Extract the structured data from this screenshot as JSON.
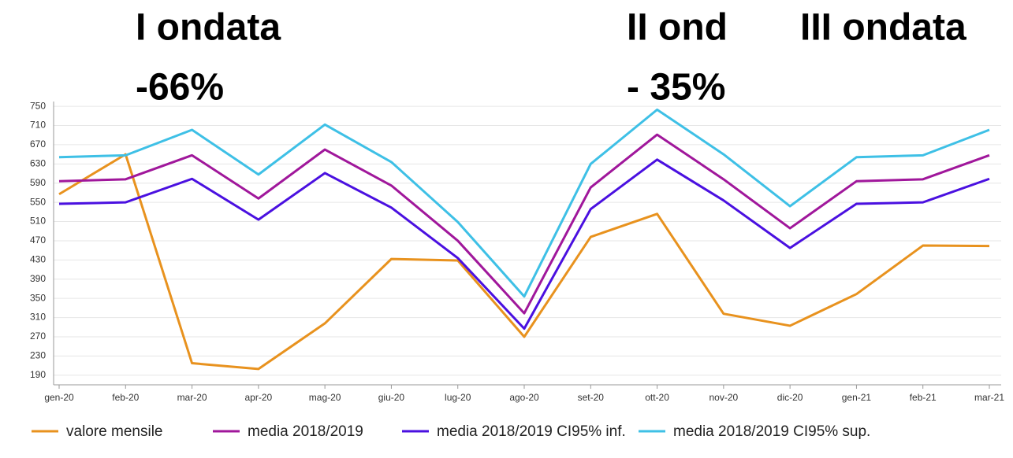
{
  "chart_data": {
    "type": "line",
    "annotations": [
      "I ondata",
      "-66%",
      "II ond",
      "- 35%",
      "III ondata"
    ],
    "categories": [
      "gen-20",
      "feb-20",
      "mar-20",
      "apr-20",
      "mag-20",
      "giu-20",
      "lug-20",
      "ago-20",
      "set-20",
      "ott-20",
      "nov-20",
      "dic-20",
      "gen-21",
      "feb-21",
      "mar-21"
    ],
    "series": [
      {
        "name": "valore mensile",
        "color": "#e8921e",
        "values": [
          567,
          650,
          215,
          203,
          298,
          432,
          429,
          270,
          478,
          526,
          318,
          293,
          359,
          460,
          459
        ]
      },
      {
        "name": "media 2018/2019",
        "color": "#a0179b",
        "values": [
          594,
          598,
          648,
          558,
          660,
          585,
          470,
          319,
          581,
          691,
          598,
          496,
          594,
          598,
          648
        ]
      },
      {
        "name": "media 2018/2019 CI95% inf.",
        "color": "#4a10e0",
        "values": [
          547,
          550,
          599,
          514,
          611,
          539,
          434,
          287,
          536,
          639,
          554,
          455,
          547,
          550,
          599
        ]
      },
      {
        "name": "media 2018/2019 CI95% sup.",
        "color": "#3ec0e6",
        "values": [
          644,
          648,
          701,
          608,
          712,
          634,
          509,
          354,
          630,
          743,
          650,
          542,
          644,
          648,
          701
        ]
      }
    ],
    "ylim": [
      170,
      760
    ],
    "yticks": [
      190,
      230,
      270,
      310,
      350,
      390,
      430,
      470,
      510,
      550,
      590,
      630,
      670,
      710,
      750
    ],
    "grid": true
  }
}
